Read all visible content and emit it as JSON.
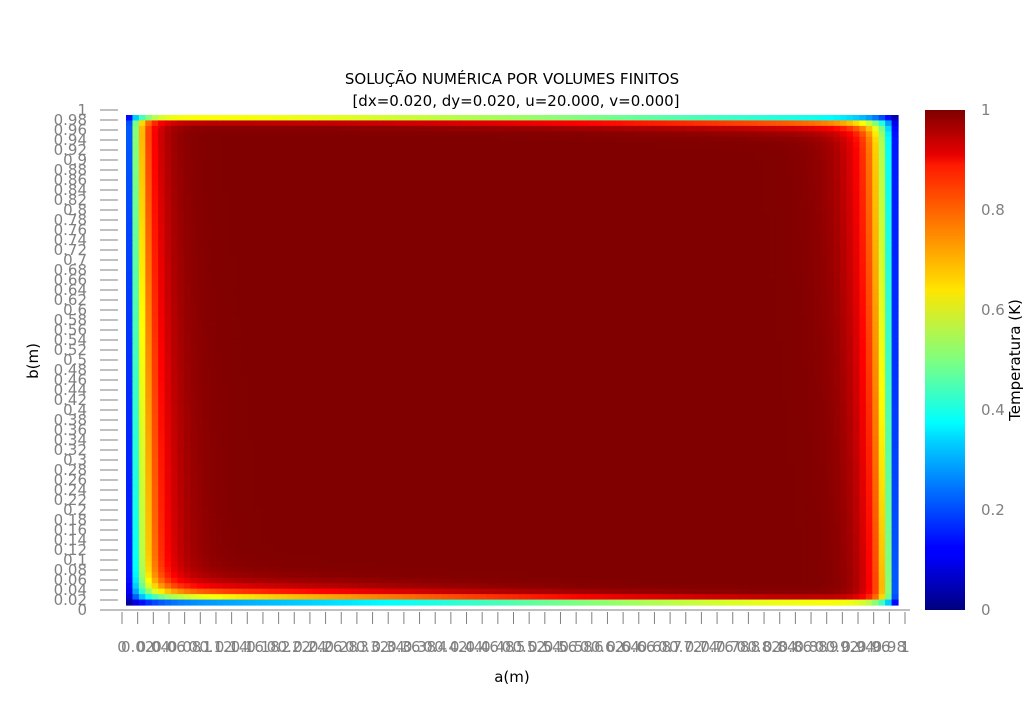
{
  "chart_data": {
    "type": "heatmap",
    "title": "SOLUÇÃO NUMÉRICA POR VOLUMES FINITOS",
    "subtitle": "[dx=0.020, dy=0.020, u=20.000, v=0.000]",
    "xlabel": "a(m)",
    "ylabel": "b(m)",
    "xlim": [
      0,
      1
    ],
    "ylim": [
      0,
      1
    ],
    "x_ticks": [
      "0",
      "0.02",
      "0.04",
      "0.06",
      "0.08",
      "0.1",
      "0.12",
      "0.14",
      "0.16",
      "0.18",
      "0.2",
      "0.22",
      "0.24",
      "0.26",
      "0.28",
      "0.3",
      "0.32",
      "0.34",
      "0.36",
      "0.38",
      "0.4",
      "0.42",
      "0.44",
      "0.46",
      "0.48",
      "0.5",
      "0.52",
      "0.54",
      "0.56",
      "0.58",
      "0.6",
      "0.62",
      "0.64",
      "0.66",
      "0.68",
      "0.7",
      "0.72",
      "0.74",
      "0.76",
      "0.78",
      "0.8",
      "0.82",
      "0.84",
      "0.86",
      "0.88",
      "0.9",
      "0.92",
      "0.94",
      "0.96",
      "0.98",
      "1"
    ],
    "y_ticks": [
      "0",
      "0.02",
      "0.04",
      "0.06",
      "0.08",
      "0.1",
      "0.12",
      "0.14",
      "0.16",
      "0.18",
      "0.2",
      "0.22",
      "0.24",
      "0.26",
      "0.28",
      "0.3",
      "0.32",
      "0.34",
      "0.36",
      "0.38",
      "0.4",
      "0.42",
      "0.44",
      "0.46",
      "0.48",
      "0.5",
      "0.52",
      "0.54",
      "0.56",
      "0.58",
      "0.6",
      "0.62",
      "0.64",
      "0.66",
      "0.68",
      "0.7",
      "0.72",
      "0.74",
      "0.76",
      "0.78",
      "0.8",
      "0.82",
      "0.84",
      "0.86",
      "0.88",
      "0.9",
      "0.92",
      "0.94",
      "0.96",
      "0.98",
      "1"
    ],
    "grid_cells": [
      50,
      50
    ],
    "field_description": "temperature ~1 in interior, falling to 0 at all four walls; boundary layer thicker near left/right walls and at bottom-left/top-right",
    "colorbar": {
      "label": "Temperatura (K)",
      "colormap": "jet",
      "range": [
        0,
        1
      ],
      "ticks": [
        "0",
        "0.2",
        "0.4",
        "0.6",
        "0.8",
        "1"
      ]
    }
  }
}
